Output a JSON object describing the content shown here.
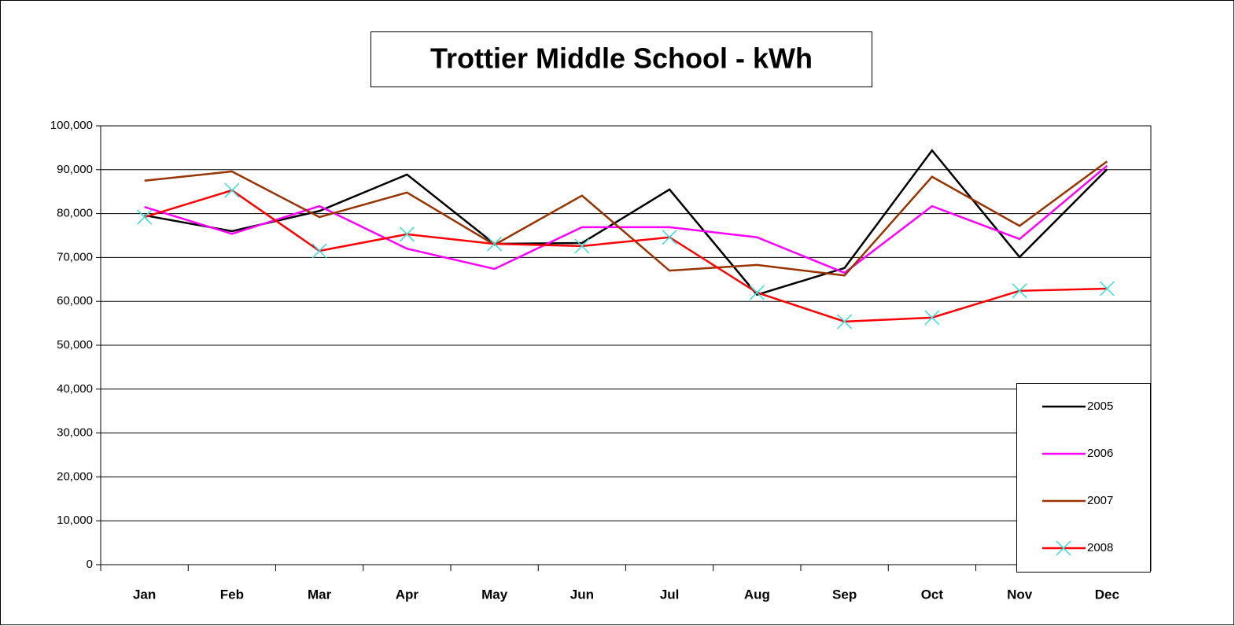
{
  "chart_data": {
    "type": "line",
    "title": "Trottier Middle School - kWh",
    "categories": [
      "Jan",
      "Feb",
      "Mar",
      "Apr",
      "May",
      "Jun",
      "Jul",
      "Aug",
      "Sep",
      "Oct",
      "Nov",
      "Dec"
    ],
    "series": [
      {
        "name": "2005",
        "color": "#000000",
        "values": [
          79600,
          76000,
          80600,
          88900,
          73100,
          73300,
          85500,
          61500,
          67600,
          94400,
          70100,
          90100
        ]
      },
      {
        "name": "2006",
        "color": "#ff00ff",
        "values": [
          81500,
          75400,
          81700,
          72000,
          67400,
          76900,
          76900,
          74600,
          66500,
          81700,
          74200,
          90900
        ]
      },
      {
        "name": "2007",
        "color": "#993300",
        "values": [
          87500,
          89600,
          79200,
          84800,
          72900,
          84100,
          67000,
          68300,
          65900,
          88400,
          77200,
          91900
        ]
      },
      {
        "name": "2008",
        "color": "#ff0000",
        "marker": "x",
        "marker_color": "#33dddd",
        "values": [
          79200,
          85300,
          71500,
          75300,
          73100,
          72600,
          74600,
          62000,
          55400,
          56300,
          62400,
          62900
        ]
      }
    ],
    "ylim": [
      0,
      100000
    ],
    "yticks": [
      0,
      {
        "value": 10000,
        "label": "10,000"
      },
      {
        "value": 20000,
        "label": "20,000"
      },
      {
        "value": 30000,
        "label": "30,000"
      },
      {
        "value": 40000,
        "label": "40,000"
      },
      {
        "value": 50000,
        "label": "50,000"
      },
      {
        "value": 60000,
        "label": "60,000"
      },
      {
        "value": 70000,
        "label": "70,000"
      },
      {
        "value": 80000,
        "label": "80,000"
      },
      {
        "value": 90000,
        "label": "90,000"
      },
      {
        "value": 100000,
        "label": "100,000"
      }
    ],
    "grid": true,
    "legend": "right"
  }
}
